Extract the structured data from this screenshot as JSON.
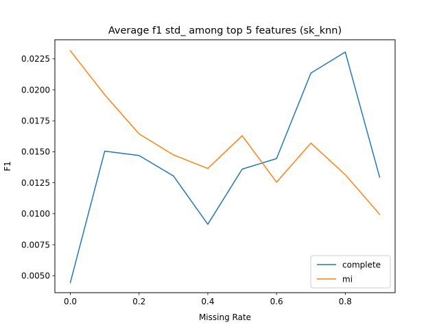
{
  "chart_data": {
    "type": "line",
    "title": "Average f1 std_ among top 5 features (sk_knn)",
    "xlabel": "Missing Rate",
    "ylabel": "F1",
    "x": [
      0.0,
      0.1,
      0.2,
      0.3,
      0.4,
      0.5,
      0.6,
      0.7,
      0.8,
      0.9
    ],
    "xlim": [
      -0.045,
      0.945
    ],
    "ylim": [
      0.00363,
      0.02404
    ],
    "xticks": [
      0.0,
      0.2,
      0.4,
      0.6,
      0.8
    ],
    "xtick_labels": [
      "0.0",
      "0.2",
      "0.4",
      "0.6",
      "0.8"
    ],
    "yticks": [
      0.005,
      0.0075,
      0.01,
      0.0125,
      0.015,
      0.0175,
      0.02,
      0.0225
    ],
    "ytick_labels": [
      "0.0050",
      "0.0075",
      "0.0100",
      "0.0125",
      "0.0150",
      "0.0175",
      "0.0200",
      "0.0225"
    ],
    "grid": false,
    "legend_position": "bottom-right",
    "series": [
      {
        "name": "complete",
        "color": "#1f77b4",
        "values": [
          0.00445,
          0.01505,
          0.0147,
          0.01305,
          0.00915,
          0.0136,
          0.01445,
          0.02135,
          0.02305,
          0.01295
        ]
      },
      {
        "name": "mi",
        "color": "#ff7f0e",
        "values": [
          0.02315,
          0.0196,
          0.01645,
          0.01475,
          0.01365,
          0.0163,
          0.01255,
          0.0157,
          0.01315,
          0.00995
        ]
      }
    ]
  }
}
